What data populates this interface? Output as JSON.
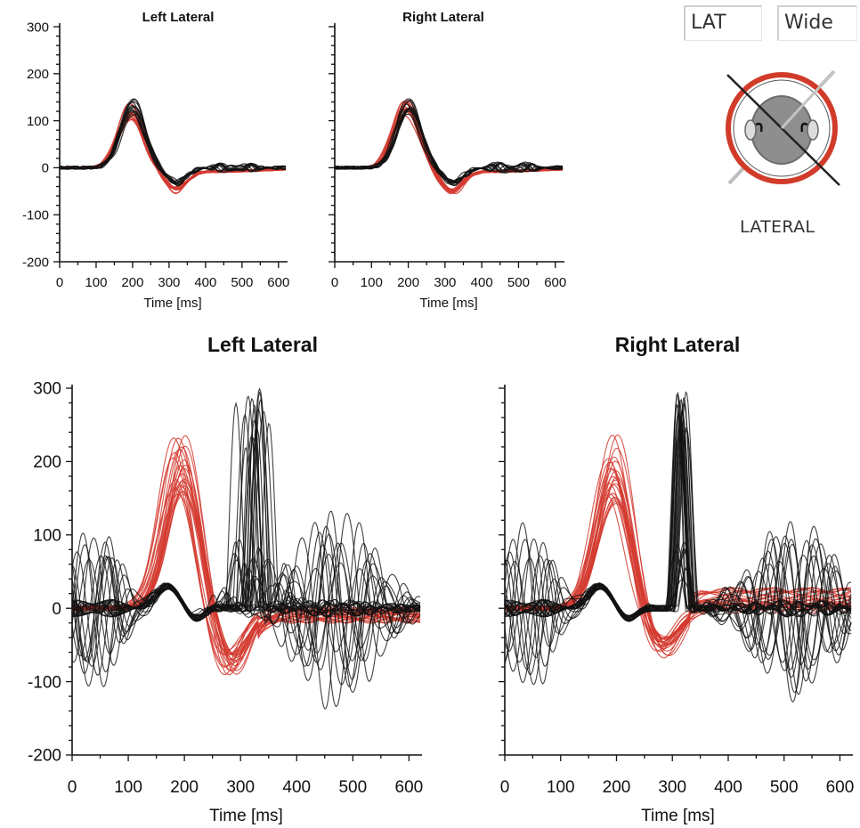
{
  "controls": {
    "mode_button": "LAT",
    "range_button": "Wide",
    "mode_label": "LATERAL"
  },
  "colors": {
    "trace_black": "#111111",
    "trace_red": "#d43a2f",
    "icon_ring": "#d13b2a",
    "icon_head": "#8a8a8a"
  },
  "chart_data": [
    {
      "type": "line",
      "title": "Left Lateral",
      "xlabel": "Time [ms]",
      "ylabel": "",
      "xlim": [
        0,
        620
      ],
      "ylim": [
        -200,
        300
      ],
      "x_ticks": [
        "0",
        "100",
        "200",
        "300",
        "400",
        "500",
        "600"
      ],
      "y_ticks": [
        "300",
        "200",
        "100",
        "0",
        "-100",
        "-200"
      ],
      "series": [
        {
          "color": "red",
          "x": [
            0,
            100,
            150,
            200,
            250,
            300,
            350,
            400,
            500,
            620
          ],
          "y": [
            0,
            5,
            60,
            125,
            20,
            -45,
            -15,
            -5,
            -5,
            -5
          ]
        },
        {
          "color": "black",
          "x": [
            0,
            100,
            150,
            200,
            250,
            300,
            350,
            450,
            460,
            500,
            620
          ],
          "y": [
            0,
            5,
            60,
            135,
            30,
            -35,
            -5,
            10,
            40,
            10,
            0
          ]
        }
      ]
    },
    {
      "type": "line",
      "title": "Right Lateral",
      "xlabel": "Time [ms]",
      "ylabel": "",
      "xlim": [
        0,
        620
      ],
      "ylim": [
        -200,
        300
      ],
      "x_ticks": [
        "0",
        "100",
        "200",
        "300",
        "400",
        "500",
        "600"
      ],
      "y_ticks": [],
      "series": [
        {
          "color": "red",
          "x": [
            0,
            100,
            150,
            200,
            250,
            300,
            350,
            400,
            500,
            620
          ],
          "y": [
            0,
            5,
            60,
            125,
            20,
            -40,
            -15,
            -10,
            -10,
            -10
          ]
        },
        {
          "color": "black",
          "x": [
            0,
            100,
            150,
            200,
            250,
            300,
            350,
            420,
            500,
            620
          ],
          "y": [
            0,
            5,
            60,
            135,
            30,
            -30,
            -10,
            30,
            10,
            0
          ]
        }
      ]
    },
    {
      "type": "line",
      "title": "Left Lateral",
      "xlabel": "Time [ms]",
      "ylabel": "",
      "xlim": [
        0,
        620
      ],
      "ylim": [
        -200,
        300
      ],
      "x_ticks": [
        "0",
        "100",
        "200",
        "300",
        "400",
        "500",
        "600"
      ],
      "y_ticks": [
        "300",
        "200",
        "100",
        "0",
        "-100",
        "-200"
      ],
      "series": [
        {
          "color": "red",
          "x": [
            0,
            100,
            150,
            190,
            220,
            240,
            270,
            320,
            400,
            500,
            620
          ],
          "y": [
            0,
            5,
            80,
            200,
            120,
            10,
            -60,
            -40,
            -20,
            -10,
            -5
          ]
        },
        {
          "color": "black",
          "x": [
            0,
            20,
            50,
            130,
            170,
            200,
            240,
            280,
            300,
            340,
            410,
            490,
            620
          ],
          "y": [
            0,
            -130,
            20,
            -120,
            40,
            0,
            -20,
            250,
            280,
            250,
            180,
            130,
            0
          ]
        }
      ]
    },
    {
      "type": "line",
      "title": "Right Lateral",
      "xlabel": "Time [ms]",
      "ylabel": "",
      "xlim": [
        0,
        620
      ],
      "ylim": [
        -200,
        300
      ],
      "x_ticks": [
        "0",
        "100",
        "200",
        "300",
        "400",
        "500",
        "600"
      ],
      "y_ticks": [],
      "series": [
        {
          "color": "red",
          "x": [
            0,
            100,
            150,
            190,
            220,
            240,
            270,
            320,
            400,
            500,
            620
          ],
          "y": [
            0,
            5,
            80,
            200,
            110,
            10,
            -50,
            -20,
            5,
            10,
            15
          ]
        },
        {
          "color": "black",
          "x": [
            0,
            20,
            100,
            170,
            240,
            280,
            310,
            330,
            400,
            490,
            560,
            620
          ],
          "y": [
            0,
            -100,
            -60,
            40,
            -10,
            200,
            300,
            250,
            150,
            170,
            120,
            -100
          ]
        }
      ]
    }
  ]
}
